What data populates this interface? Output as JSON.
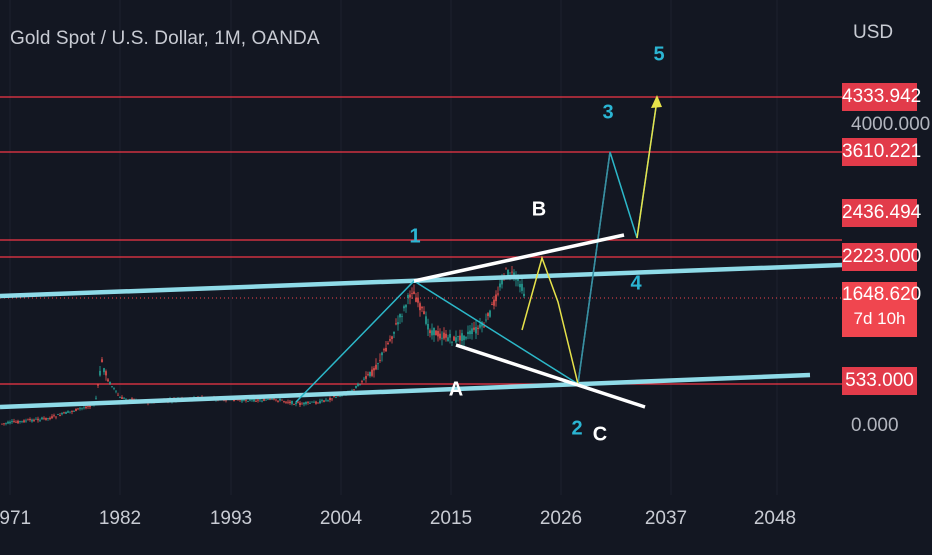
{
  "header": {
    "symbol_title": "Gold Spot / U.S. Dollar, 1M, OANDA",
    "currency": "USD"
  },
  "price_axis": {
    "levels": [
      {
        "value": "4333.942",
        "color": "#e23b4a"
      },
      {
        "value": "3610.221",
        "color": "#e23b4a"
      },
      {
        "value": "2436.494",
        "color": "#e23b4a"
      },
      {
        "value": "2223.000",
        "color": "#e23b4a"
      },
      {
        "value": "533.000",
        "color": "#e23b4a"
      }
    ],
    "current_price": {
      "value": "1648.620",
      "countdown": "7d 10h"
    },
    "scale_labels": [
      "4000.000",
      "0.000"
    ]
  },
  "time_axis": {
    "ticks": [
      "1971",
      "1982",
      "1993",
      "2004",
      "2015",
      "2026",
      "2037",
      "2048"
    ]
  },
  "wave_labels": {
    "impulse": [
      "1",
      "2",
      "3",
      "4",
      "5"
    ],
    "corrective": [
      "A",
      "B",
      "C"
    ]
  },
  "colors": {
    "background": "#131722",
    "level_line": "#f23645",
    "trend_channel": "#8fdbe8",
    "wave_path": "#2cb8c9",
    "projection": "#e6e24a",
    "wedge": "#ffffff",
    "candle_up": "#26a69a",
    "candle_down": "#ef5350"
  },
  "icons": {}
}
